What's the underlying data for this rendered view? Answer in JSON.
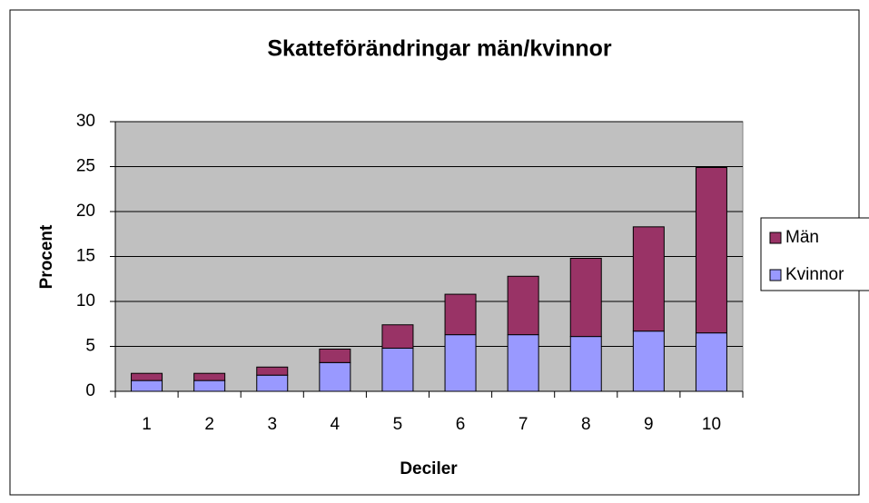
{
  "chart_data": {
    "type": "stacked_bar",
    "title": "Skatteförändringar män/kvinnor",
    "x_label": "Deciler",
    "y_label": "Procent",
    "categories": [
      "1",
      "2",
      "3",
      "4",
      "5",
      "6",
      "7",
      "8",
      "9",
      "10"
    ],
    "series": [
      {
        "name": "Kvinnor",
        "color": "#9999ff",
        "values": [
          1.2,
          1.2,
          1.8,
          3.2,
          4.8,
          6.3,
          6.3,
          6.1,
          6.7,
          6.5
        ]
      },
      {
        "name": "Män",
        "color": "#993366",
        "values": [
          0.8,
          0.8,
          0.9,
          1.5,
          2.6,
          4.5,
          6.5,
          8.7,
          11.6,
          18.4
        ]
      }
    ],
    "ylim": [
      0,
      30
    ],
    "yticks": [
      0,
      5,
      10,
      15,
      20,
      25,
      30
    ],
    "grid": true,
    "legend": "right",
    "plot_background": "#c0c0c0"
  }
}
